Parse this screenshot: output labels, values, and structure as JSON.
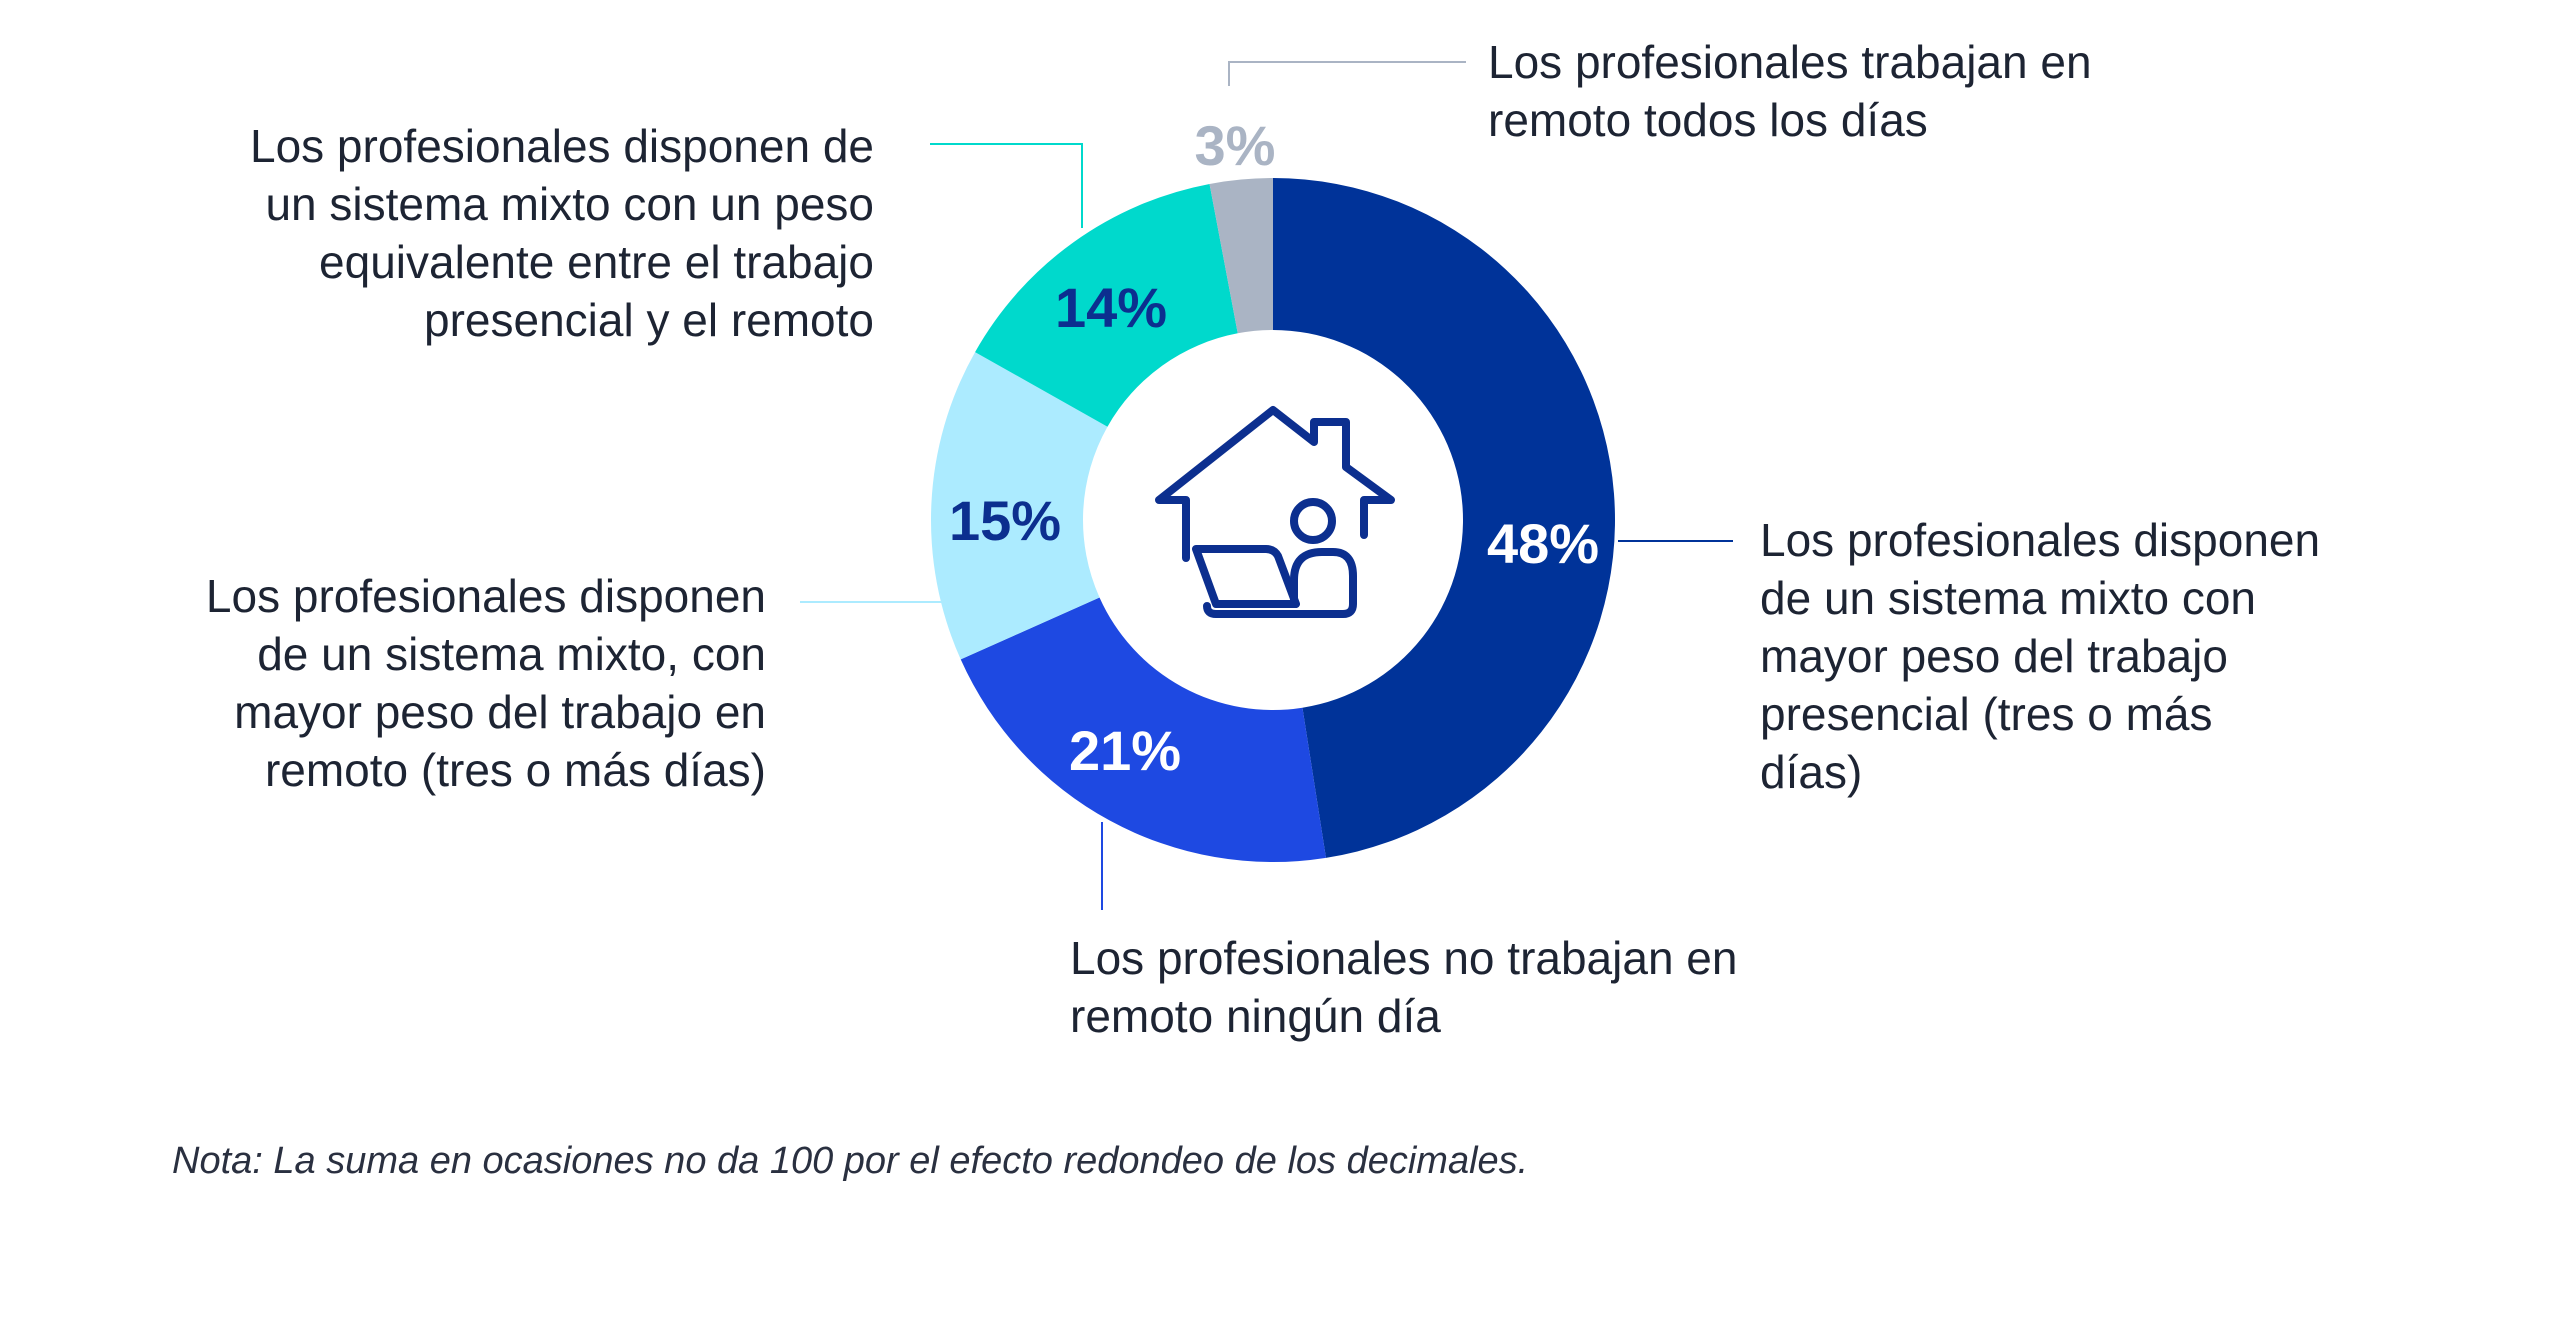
{
  "chart_data": {
    "type": "pie",
    "slices": [
      {
        "label": "Los profesionales disponen de un sistema mixto con mayor peso del trabajo presencial (tres o más días)",
        "value": 48,
        "value_label": "48%",
        "color": "#003399",
        "label_color": "#ffffff"
      },
      {
        "label": "Los profesionales no trabajan en remoto ningún día",
        "value": 21,
        "value_label": "21%",
        "color": "#1e49e2",
        "label_color": "#ffffff"
      },
      {
        "label": "Los profesionales disponen de un sistema mixto, con mayor peso del trabajo en remoto (tres o más días)",
        "value": 15,
        "value_label": "15%",
        "color": "#acebff",
        "label_color": "#0c2f8f"
      },
      {
        "label": "Los profesionales disponen de un sistema mixto con un peso equivalente entre el trabajo presencial y el remoto",
        "value": 14,
        "value_label": "14%",
        "color": "#00d9cc",
        "label_color": "#0c2f8f"
      },
      {
        "label": "Los profesionales trabajan en remoto todos los días",
        "value": 3,
        "value_label": "3%",
        "color": "#aab4c4",
        "label_color": "#aab4c4"
      }
    ]
  },
  "center_icon": "house-with-person-at-laptop-icon",
  "note": "Nota: La suma en ocasiones no da 100 por el efecto redondeo de los decimales."
}
